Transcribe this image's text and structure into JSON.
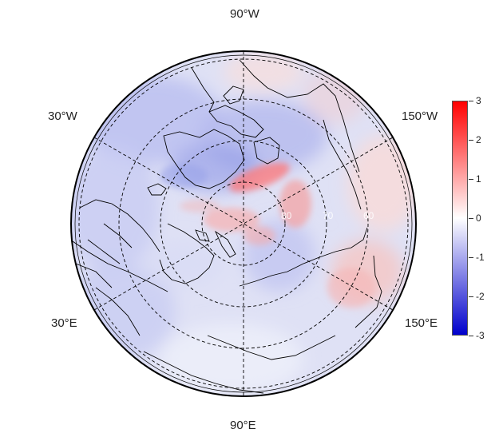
{
  "map": {
    "projection": "north-polar-stereographic",
    "lon_labels": {
      "top": "90°W",
      "bottom": "90°E",
      "upper_left": "30°W",
      "lower_left": "30°E",
      "upper_right": "150°W",
      "lower_right": "150°E"
    },
    "lat_labels": [
      "80",
      "70",
      "60"
    ]
  },
  "colorbar": {
    "ticks": [
      "3",
      "2",
      "1",
      "0",
      "-1",
      "-2",
      "-3"
    ],
    "min": -3,
    "max": 3,
    "colors": {
      "high": "#ff0000",
      "mid": "#ffffff",
      "low": "#0000cc"
    }
  }
}
